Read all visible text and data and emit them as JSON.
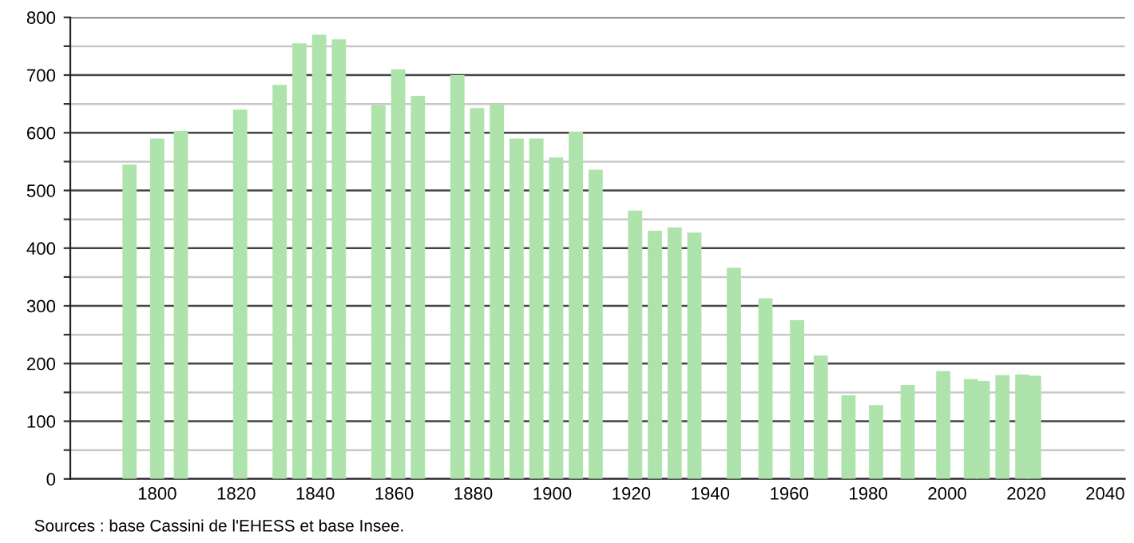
{
  "chart_data": {
    "type": "bar",
    "x": [
      1793,
      1800,
      1806,
      1821,
      1831,
      1836,
      1841,
      1846,
      1856,
      1861,
      1866,
      1876,
      1881,
      1886,
      1891,
      1896,
      1901,
      1906,
      1911,
      1921,
      1926,
      1931,
      1936,
      1946,
      1954,
      1962,
      1968,
      1975,
      1982,
      1990,
      1999,
      2006,
      2009,
      2014,
      2019,
      2022
    ],
    "values": [
      545,
      590,
      603,
      640,
      683,
      755,
      770,
      762,
      648,
      710,
      664,
      700,
      643,
      650,
      590,
      590,
      557,
      602,
      536,
      465,
      430,
      436,
      427,
      366,
      313,
      275,
      214,
      145,
      128,
      163,
      187,
      173,
      170,
      180,
      181,
      179
    ],
    "color": "#aee3ac",
    "xlim": [
      1778,
      2045
    ],
    "xticks": [
      1800,
      1820,
      1840,
      1860,
      1880,
      1900,
      1920,
      1940,
      1960,
      1980,
      2000,
      2020,
      2040
    ],
    "ylim": [
      0,
      800
    ],
    "yticks": [
      0,
      {
        "value": 50,
        "label": null
      },
      100,
      {
        "value": 150,
        "label": null
      },
      200,
      {
        "value": 250,
        "label": null
      },
      300,
      {
        "value": 350,
        "label": null
      },
      400,
      {
        "value": 450,
        "label": null
      },
      500,
      {
        "value": 550,
        "label": null
      },
      600,
      {
        "value": 650,
        "label": null
      },
      700,
      {
        "value": 750,
        "label": null
      },
      800
    ],
    "grid": "y",
    "annotations": [
      "Sources : base Cassini de l'EHESS et base Insee."
    ]
  }
}
